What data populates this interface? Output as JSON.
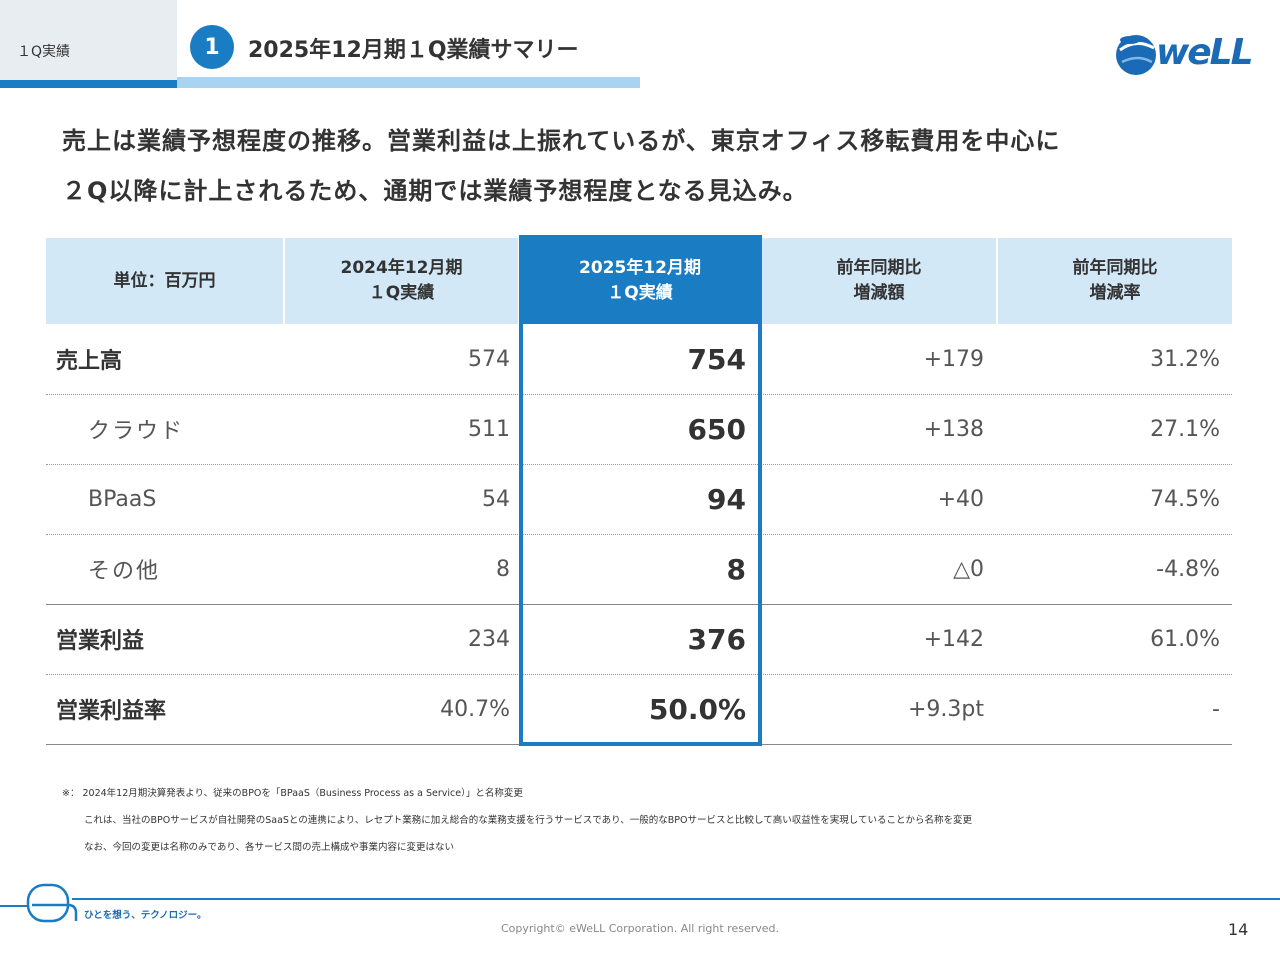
{
  "header": {
    "section_label": "１Q実績",
    "badge_number": "1",
    "title": "2025年12月期１Q業績サマリー",
    "logo_text": "weLL"
  },
  "lead": {
    "line1": "売上は業績予想程度の推移。営業利益は上振れているが、東京オフィス移転費用を中心に",
    "line2": "２Q以降に計上されるため、通期では業績予想程度となる見込み。"
  },
  "table": {
    "headers": [
      "単位：百万円",
      "2024年12月期\n１Q実績",
      "2025年12月期\n１Q実績",
      "前年同期比\n増減額",
      "前年同期比\n増減率"
    ],
    "rows": [
      {
        "label": "売上高",
        "prev": "574",
        "curr": "754",
        "diff": "+179",
        "rate": "31.2%"
      },
      {
        "label": "クラウド",
        "prev": "511",
        "curr": "650",
        "diff": "+138",
        "rate": "27.1%"
      },
      {
        "label": "BPaaS",
        "prev": "54",
        "curr": "94",
        "diff": "+40",
        "rate": "74.5%"
      },
      {
        "label": "その他",
        "prev": "8",
        "curr": "8",
        "diff": "△0",
        "rate": "-4.8%"
      },
      {
        "label": "営業利益",
        "prev": "234",
        "curr": "376",
        "diff": "+142",
        "rate": "61.0%"
      },
      {
        "label": "営業利益率",
        "prev": "40.7%",
        "curr": "50.0%",
        "diff": "+9.3pt",
        "rate": "-"
      }
    ]
  },
  "notes": {
    "line1": "※： 2024年12月期決算発表より、従来のBPOを「BPaaS（Business Process as a Service）」と名称変更",
    "line2": "これは、当社のBPOサービスが自社開発のSaaSとの連携により、レセプト業務に加え総合的な業務支援を行うサービスであり、一般的なBPOサービスと比較して高い収益性を実現していることから名称を変更",
    "line3": "なお、今回の変更は名称のみであり、各サービス間の売上構成や事業内容に変更はない"
  },
  "footer": {
    "tagline": "ひとを想う、テクノロジー。",
    "copyright": "Copyright© eWeLL Corporation. All right reserved.",
    "page_number": "14"
  },
  "colors": {
    "accent": "#1a7cc2",
    "header_cell": "#d2e8f7",
    "light_bar": "#a9d4ef"
  }
}
